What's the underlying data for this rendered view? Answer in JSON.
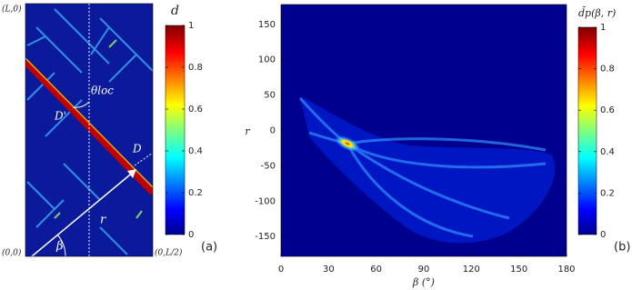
{
  "chart_data": [
    {
      "type": "heatmap",
      "panel_label": "(a)",
      "colorbar_label": "d",
      "clim": [
        0,
        1
      ],
      "cticks": [
        0,
        0.2,
        0.4,
        0.6,
        0.8,
        1
      ],
      "colormap": "jet",
      "annotations": {
        "top_left": "(L,0)",
        "bottom_left": "(0,0)",
        "bottom_right": "(0,L/2)",
        "theta": "θloc",
        "d_prime": "D'",
        "d": "D",
        "r": "r",
        "beta": "β"
      }
    },
    {
      "type": "heatmap",
      "panel_label": "(b)",
      "colorbar_label": "d̄p(β, r)",
      "xlabel": "β (°)",
      "ylabel": "r",
      "xlim": [
        0,
        180
      ],
      "xticks": [
        0,
        30,
        60,
        90,
        120,
        150,
        180
      ],
      "ylim": [
        -178,
        178
      ],
      "yticks": [
        -150,
        -100,
        -50,
        0,
        50,
        100,
        150
      ],
      "clim": [
        0,
        1
      ],
      "cticks": [
        0,
        0.2,
        0.4,
        0.6,
        0.8,
        1
      ],
      "colormap": "jet"
    }
  ]
}
